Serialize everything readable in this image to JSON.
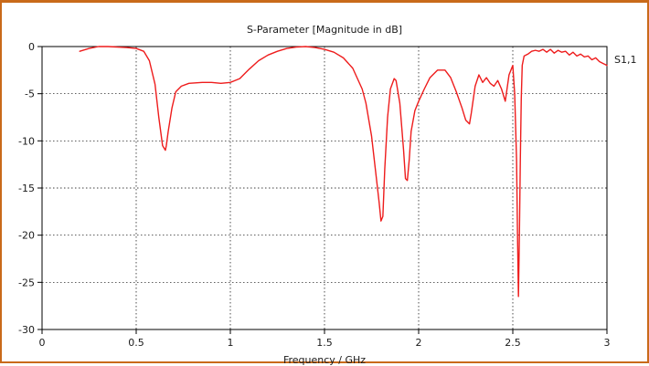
{
  "chart_data": {
    "type": "line",
    "title": "S-Parameter [Magnitude in dB]",
    "xlabel": "Frequency / GHz",
    "ylabel": "",
    "xlim": [
      0,
      3
    ],
    "ylim": [
      -30,
      0
    ],
    "xticks": [
      0,
      0.5,
      1,
      1.5,
      2,
      2.5,
      3
    ],
    "xtick_labels": [
      "0",
      "0.5",
      "1",
      "1.5",
      "2",
      "2.5",
      "3"
    ],
    "yticks": [
      0,
      -5,
      -10,
      -15,
      -20,
      -25,
      -30
    ],
    "ytick_labels": [
      "0",
      "-5",
      "-10",
      "-15",
      "-20",
      "-25",
      "-30"
    ],
    "grid": true,
    "legend_position": "top-right",
    "colors": {
      "series": "#ee1c1c",
      "frame_border": "#c96a1a"
    },
    "series": [
      {
        "name": "S1,1",
        "x": [
          0.2,
          0.25,
          0.3,
          0.35,
          0.4,
          0.45,
          0.5,
          0.54,
          0.57,
          0.6,
          0.62,
          0.64,
          0.655,
          0.66,
          0.67,
          0.69,
          0.71,
          0.74,
          0.78,
          0.85,
          0.9,
          0.95,
          1.0,
          1.05,
          1.1,
          1.15,
          1.2,
          1.25,
          1.3,
          1.35,
          1.4,
          1.45,
          1.5,
          1.55,
          1.6,
          1.65,
          1.7,
          1.72,
          1.75,
          1.77,
          1.79,
          1.8,
          1.81,
          1.82,
          1.835,
          1.85,
          1.87,
          1.88,
          1.9,
          1.92,
          1.93,
          1.94,
          1.95,
          1.96,
          1.98,
          2.0,
          2.03,
          2.06,
          2.1,
          2.14,
          2.17,
          2.2,
          2.23,
          2.25,
          2.27,
          2.28,
          2.3,
          2.32,
          2.34,
          2.36,
          2.38,
          2.4,
          2.42,
          2.44,
          2.46,
          2.48,
          2.5,
          2.51,
          2.52,
          2.525,
          2.53,
          2.535,
          2.54,
          2.545,
          2.55,
          2.56,
          2.58,
          2.6,
          2.62,
          2.64,
          2.66,
          2.68,
          2.7,
          2.72,
          2.74,
          2.76,
          2.78,
          2.8,
          2.82,
          2.84,
          2.86,
          2.88,
          2.9,
          2.92,
          2.94,
          2.96,
          2.98,
          3.0
        ],
        "values": [
          -0.5,
          -0.2,
          0.0,
          0.0,
          -0.05,
          -0.1,
          -0.2,
          -0.5,
          -1.5,
          -4.0,
          -7.5,
          -10.5,
          -11.0,
          -10.5,
          -9.0,
          -6.5,
          -4.8,
          -4.2,
          -3.9,
          -3.8,
          -3.8,
          -3.9,
          -3.8,
          -3.4,
          -2.4,
          -1.5,
          -0.9,
          -0.5,
          -0.2,
          -0.05,
          0.0,
          -0.1,
          -0.3,
          -0.6,
          -1.2,
          -2.3,
          -4.5,
          -6.0,
          -9.5,
          -13.0,
          -16.5,
          -18.5,
          -18.0,
          -13.0,
          -7.5,
          -4.5,
          -3.4,
          -3.6,
          -6.0,
          -11.0,
          -14.0,
          -14.2,
          -12.0,
          -9.0,
          -6.8,
          -5.8,
          -4.5,
          -3.3,
          -2.5,
          -2.5,
          -3.3,
          -4.8,
          -6.5,
          -7.8,
          -8.2,
          -7.0,
          -4.2,
          -3.0,
          -3.8,
          -3.3,
          -3.9,
          -4.2,
          -3.6,
          -4.5,
          -5.8,
          -3.0,
          -2.0,
          -5.0,
          -12.0,
          -20.0,
          -26.5,
          -20.0,
          -12.0,
          -5.5,
          -2.0,
          -1.0,
          -0.8,
          -0.5,
          -0.4,
          -0.5,
          -0.3,
          -0.6,
          -0.3,
          -0.7,
          -0.4,
          -0.6,
          -0.5,
          -0.9,
          -0.6,
          -1.0,
          -0.8,
          -1.1,
          -1.0,
          -1.4,
          -1.2,
          -1.6,
          -1.8,
          -2.0
        ]
      }
    ]
  }
}
